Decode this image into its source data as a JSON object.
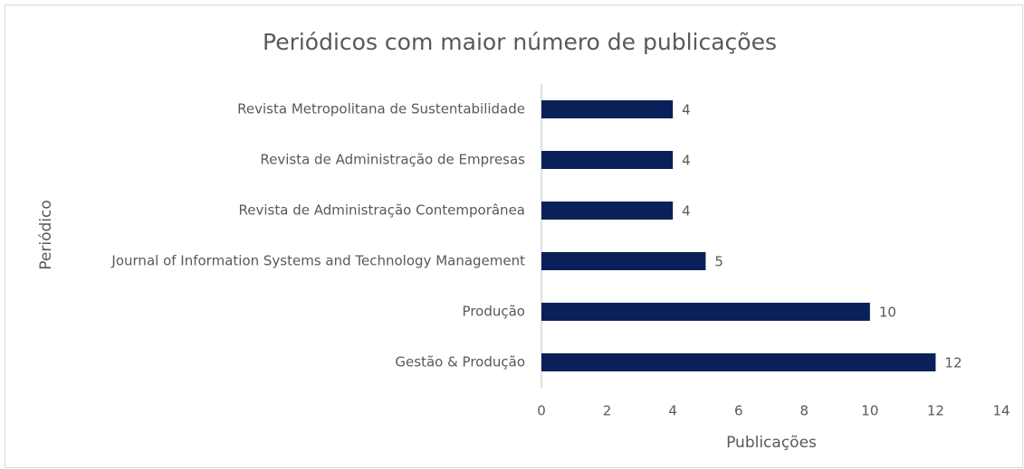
{
  "chart_data": {
    "type": "bar",
    "orientation": "horizontal",
    "title": "Periódicos com maior número de publicações",
    "x_label": "Publicações",
    "y_label": "Periódico",
    "categories": [
      "Revista Metropolitana de Sustentabilidade",
      "Revista de Administração de Empresas",
      "Revista de Administração Contemporânea",
      "Journal of Information Systems and Technology Management",
      "Produção",
      "Gestão & Produção"
    ],
    "values": [
      4,
      4,
      4,
      5,
      10,
      12
    ],
    "color": "#0b2059",
    "xlim": [
      0,
      14
    ],
    "xticks": [
      0,
      2,
      4,
      6,
      8,
      10,
      12,
      14
    ],
    "grid": false
  }
}
